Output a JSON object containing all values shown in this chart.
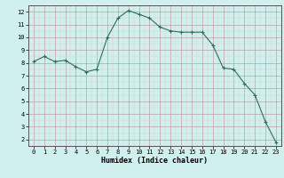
{
  "x": [
    0,
    1,
    2,
    3,
    4,
    5,
    6,
    7,
    8,
    9,
    10,
    11,
    12,
    13,
    14,
    15,
    16,
    17,
    18,
    19,
    20,
    21,
    22,
    23
  ],
  "y": [
    8.1,
    8.5,
    8.1,
    8.2,
    7.7,
    7.3,
    7.5,
    10.0,
    11.5,
    12.1,
    11.8,
    11.5,
    10.8,
    10.5,
    10.4,
    10.4,
    10.4,
    9.4,
    7.6,
    7.5,
    6.4,
    5.5,
    3.4,
    1.8
  ],
  "xlabel": "Humidex (Indice chaleur)",
  "xlim": [
    -0.5,
    23.5
  ],
  "ylim": [
    1.5,
    12.5
  ],
  "yticks": [
    2,
    3,
    4,
    5,
    6,
    7,
    8,
    9,
    10,
    11,
    12
  ],
  "xticks": [
    0,
    1,
    2,
    3,
    4,
    5,
    6,
    7,
    8,
    9,
    10,
    11,
    12,
    13,
    14,
    15,
    16,
    17,
    18,
    19,
    20,
    21,
    22,
    23
  ],
  "line_color": "#2e6e5e",
  "marker": "+",
  "bg_color": "#d0f0f0",
  "grid_major_color": "#c0a0a0",
  "grid_minor_color": "#e0c8c8",
  "axis_color": "#555555"
}
